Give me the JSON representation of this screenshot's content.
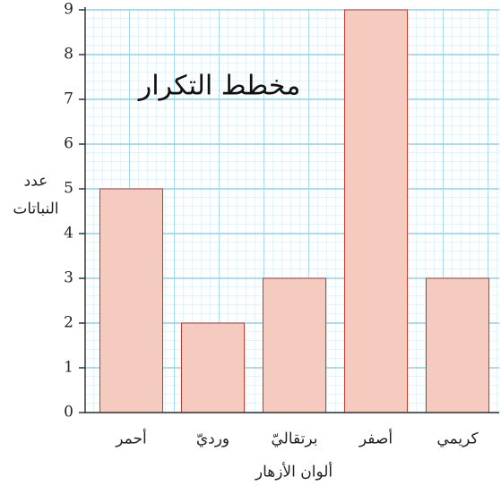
{
  "chart_data": {
    "type": "bar",
    "title": "مخطط التكرار",
    "y_label": [
      "عدد",
      "النباتات"
    ],
    "x_label": "ألوان الأزهار",
    "categories": [
      "أحمر",
      "ورديّ",
      "برتقاليّ",
      "أصفر",
      "كريمي"
    ],
    "values": [
      5,
      2,
      3,
      9,
      3
    ],
    "color": "#f6cbbf",
    "ylim": [
      0,
      9
    ],
    "yticks": [
      0,
      1,
      2,
      3,
      4,
      5,
      6,
      7,
      8,
      9
    ],
    "grid": true
  }
}
